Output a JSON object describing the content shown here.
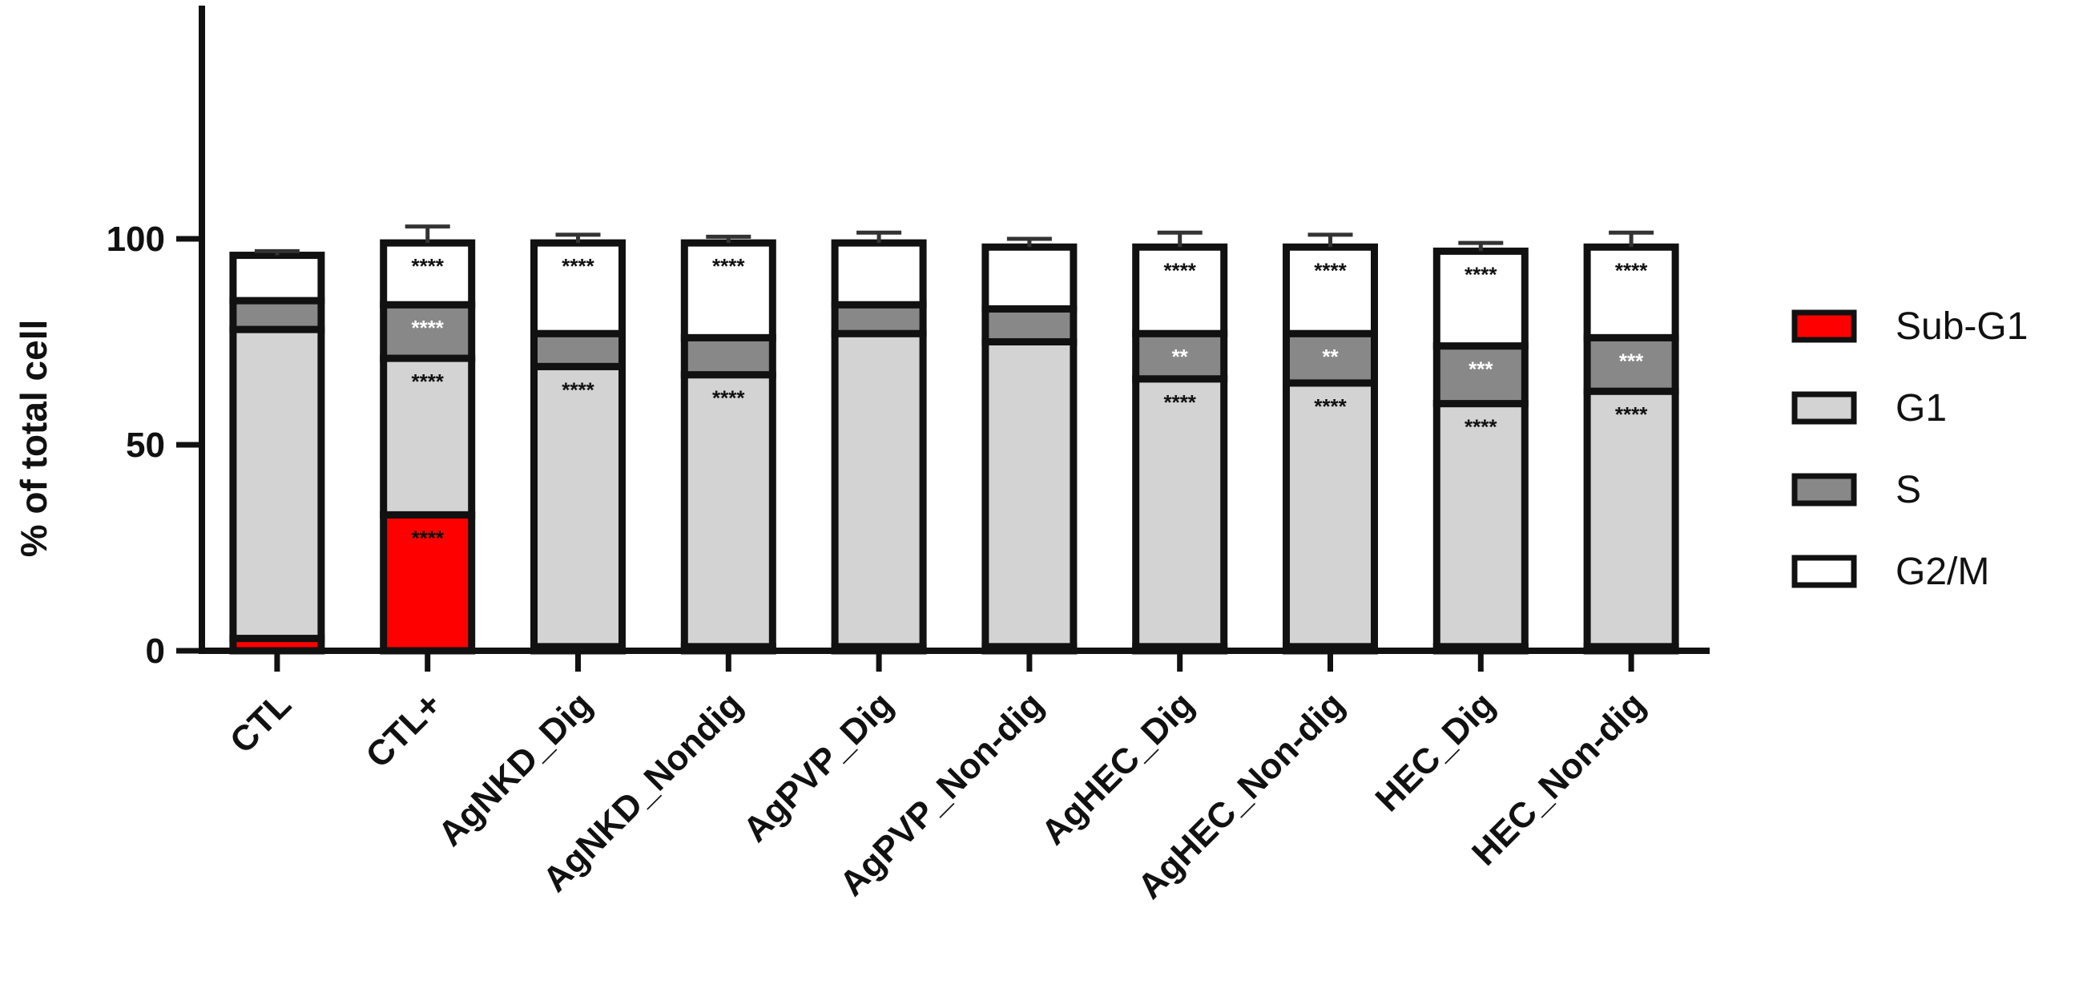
{
  "chart_data": {
    "type": "bar",
    "stacked": true,
    "title": "",
    "xlabel": "",
    "ylabel": "% of total cell",
    "ylim": [
      0,
      150
    ],
    "yticks": [
      0,
      50,
      100
    ],
    "grid": false,
    "legend_position": "right",
    "categories": [
      "CTL",
      "CTL+",
      "AgNKD_Dig",
      "AgNKD_Nondig",
      "AgPVP_Dig",
      "AgPVP_Non-dig",
      "AgHEC_Dig",
      "AgHEC_Non-dig",
      "HEC_Dig",
      "HEC_Non-dig"
    ],
    "series": [
      {
        "name": "Sub-G1",
        "color": "#ff0000",
        "values": [
          3,
          33,
          1,
          1,
          1,
          1,
          1,
          1,
          1,
          1
        ],
        "errors": [
          1.5,
          7,
          0.5,
          0.5,
          1.5,
          1,
          4,
          2,
          0.5,
          0.5
        ],
        "significance": [
          "",
          "****",
          "",
          "",
          "",
          "",
          "",
          "",
          "",
          ""
        ]
      },
      {
        "name": "G1",
        "color": "#d3d3d3",
        "values": [
          75,
          38,
          68,
          66,
          76,
          74,
          65,
          64,
          59,
          62
        ],
        "errors": [
          2,
          2,
          1.5,
          2,
          1.5,
          1.5,
          1.5,
          2,
          2,
          2
        ],
        "significance": [
          "",
          "****",
          "****",
          "****",
          "",
          "",
          "****",
          "****",
          "****",
          "****"
        ]
      },
      {
        "name": "S",
        "color": "#888888",
        "values": [
          7,
          13,
          8,
          9,
          7,
          8,
          11,
          12,
          14,
          13
        ],
        "errors": [
          2,
          5,
          1.5,
          2.5,
          2.5,
          2.5,
          4,
          3,
          3,
          2
        ],
        "significance": [
          "",
          "****",
          "",
          "",
          "",
          "",
          "**",
          "**",
          "***",
          "***"
        ]
      },
      {
        "name": "G2/M",
        "color": "#ffffff",
        "values": [
          11,
          15,
          22,
          23,
          15,
          15,
          21,
          21,
          23,
          22
        ],
        "errors": [
          1,
          4,
          2,
          1.5,
          2.5,
          2,
          3.5,
          3,
          2,
          3.5
        ],
        "significance": [
          "",
          "****",
          "****",
          "****",
          "",
          "",
          "****",
          "****",
          "****",
          "****"
        ]
      }
    ]
  }
}
